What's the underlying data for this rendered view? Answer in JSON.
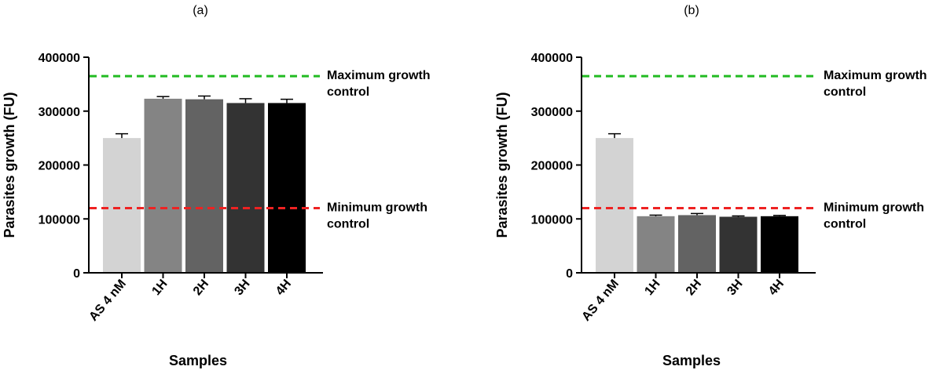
{
  "chart_data": [
    {
      "type": "bar",
      "panel_label": "(a)",
      "categories": [
        "AS 4 nM",
        "1H",
        "2H",
        "3H",
        "4H"
      ],
      "values": [
        250000,
        323000,
        322000,
        315000,
        315000
      ],
      "errors": [
        8000,
        4000,
        6000,
        8000,
        7000
      ],
      "bar_colors": [
        "#d3d3d3",
        "#848484",
        "#636363",
        "#333333",
        "#000000"
      ],
      "xlabel": "Samples",
      "ylabel": "Parasites growth (FU)",
      "ylim": [
        0,
        400000
      ],
      "yticks": [
        "0",
        "100000",
        "200000",
        "300000",
        "400000"
      ],
      "reference_lines": [
        {
          "value": 365000,
          "color": "#22bb22",
          "label_lines": [
            "Maximum growth",
            "control"
          ]
        },
        {
          "value": 120000,
          "color": "#ee2222",
          "label_lines": [
            "Minimum growth",
            "control"
          ]
        }
      ]
    },
    {
      "type": "bar",
      "panel_label": "(b)",
      "categories": [
        "AS 4 nM",
        "1H",
        "2H",
        "3H",
        "4H"
      ],
      "values": [
        250000,
        105000,
        107000,
        104000,
        105000
      ],
      "errors": [
        8000,
        2000,
        3000,
        1500,
        1500
      ],
      "bar_colors": [
        "#d3d3d3",
        "#848484",
        "#636363",
        "#333333",
        "#000000"
      ],
      "xlabel": "Samples",
      "ylabel": "Parasites growth (FU)",
      "ylim": [
        0,
        400000
      ],
      "yticks": [
        "0",
        "100000",
        "200000",
        "300000",
        "400000"
      ],
      "reference_lines": [
        {
          "value": 365000,
          "color": "#22bb22",
          "label_lines": [
            "Maximum growth",
            "control"
          ]
        },
        {
          "value": 120000,
          "color": "#ee2222",
          "label_lines": [
            "Minimum growth",
            "control"
          ]
        }
      ]
    }
  ]
}
